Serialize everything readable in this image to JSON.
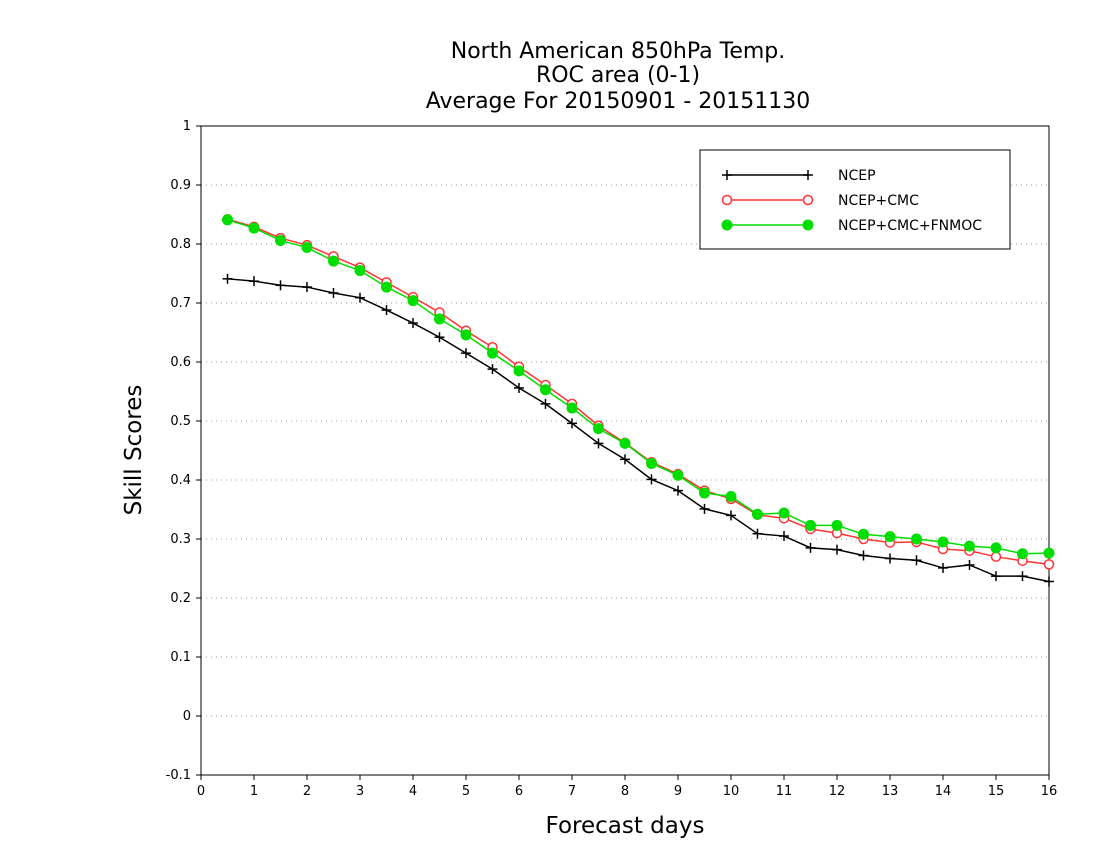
{
  "chart_data": {
    "type": "line",
    "title_lines": [
      "North American 850hPa Temp.",
      "ROC area (0-1)",
      "Average For 20150901 - 20151130"
    ],
    "xlabel": "Forecast days",
    "ylabel": "Skill Scores",
    "xlim": [
      0,
      16
    ],
    "ylim": [
      -0.1,
      1
    ],
    "x_ticks": [
      "0",
      "1",
      "2",
      "3",
      "4",
      "5",
      "6",
      "7",
      "8",
      "9",
      "10",
      "11",
      "12",
      "13",
      "14",
      "15",
      "16"
    ],
    "y_ticks": [
      "-0.1",
      "0",
      "0.1",
      "0.2",
      "0.3",
      "0.4",
      "0.5",
      "0.6",
      "0.7",
      "0.8",
      "0.9",
      "1"
    ],
    "grid": "horizontal-dotted",
    "legend_position": "top-right",
    "x": [
      0.5,
      1,
      1.5,
      2,
      2.5,
      3,
      3.5,
      4,
      4.5,
      5,
      5.5,
      6,
      6.5,
      7,
      7.5,
      8,
      8.5,
      9,
      9.5,
      10,
      10.5,
      11,
      11.5,
      12,
      12.5,
      13,
      13.5,
      14,
      14.5,
      15,
      15.5,
      16
    ],
    "series": [
      {
        "name": "NCEP",
        "color": "#000000",
        "marker": "plus",
        "values": [
          0.741,
          0.737,
          0.73,
          0.727,
          0.717,
          0.709,
          0.688,
          0.666,
          0.642,
          0.615,
          0.588,
          0.556,
          0.529,
          0.496,
          0.462,
          0.435,
          0.401,
          0.382,
          0.351,
          0.34,
          0.309,
          0.305,
          0.285,
          0.282,
          0.272,
          0.267,
          0.264,
          0.251,
          0.256,
          0.237,
          0.237,
          0.228
        ]
      },
      {
        "name": "NCEP+CMC",
        "color": "#ff3333",
        "marker": "open-circle",
        "values": [
          0.842,
          0.829,
          0.81,
          0.798,
          0.779,
          0.76,
          0.735,
          0.71,
          0.684,
          0.653,
          0.625,
          0.592,
          0.561,
          0.529,
          0.492,
          0.463,
          0.43,
          0.41,
          0.382,
          0.368,
          0.341,
          0.335,
          0.317,
          0.31,
          0.3,
          0.294,
          0.295,
          0.283,
          0.28,
          0.27,
          0.263,
          0.257
        ]
      },
      {
        "name": "NCEP+CMC+FNMOC",
        "color": "#00dd00",
        "marker": "filled-circle",
        "values": [
          0.841,
          0.827,
          0.806,
          0.794,
          0.771,
          0.755,
          0.727,
          0.704,
          0.673,
          0.646,
          0.615,
          0.585,
          0.553,
          0.522,
          0.487,
          0.462,
          0.428,
          0.408,
          0.378,
          0.372,
          0.342,
          0.344,
          0.323,
          0.323,
          0.308,
          0.304,
          0.3,
          0.295,
          0.288,
          0.285,
          0.275,
          0.276
        ]
      }
    ]
  }
}
